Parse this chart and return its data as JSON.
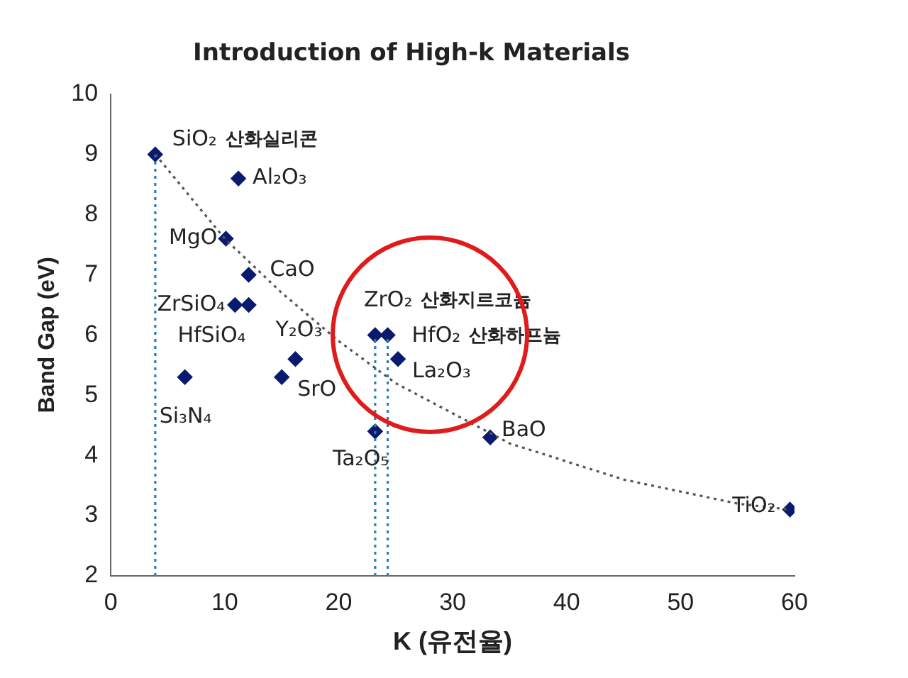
{
  "chart_data": {
    "type": "scatter",
    "title": "Introduction of High-k Materials",
    "xlabel": "K (유전율)",
    "ylabel": "Band Gap (eV)",
    "xlim": [
      0,
      60
    ],
    "xticks": [
      0,
      10,
      20,
      30,
      40,
      50,
      60
    ],
    "ylim": [
      2,
      10
    ],
    "yticks": [
      2,
      3,
      4,
      5,
      6,
      7,
      8,
      9,
      10
    ],
    "grid": false,
    "legend": false,
    "series": [
      {
        "type": "line",
        "color": "#555555",
        "marker": "none",
        "line_style": "dotted",
        "x": [
          3.9,
          10,
          15,
          20,
          25,
          30,
          35,
          40,
          45,
          50,
          55,
          59.6
        ],
        "values": [
          9,
          7.6,
          6.7,
          5.9,
          5.2,
          4.7,
          4.2,
          3.9,
          3.6,
          3.4,
          3.2,
          3.1
        ]
      },
      {
        "type": "line",
        "color": "#2a7fb0",
        "marker": "none",
        "line_style": "dotted",
        "x": [
          3.9,
          3.9
        ],
        "values": [
          2,
          9
        ]
      },
      {
        "type": "line",
        "color": "#2a7fb0",
        "marker": "none",
        "line_style": "dotted",
        "x": [
          23.2,
          23.2
        ],
        "values": [
          2,
          6
        ]
      },
      {
        "type": "line",
        "color": "#2a7fb0",
        "marker": "none",
        "line_style": "dotted",
        "x": [
          24.3,
          24.3
        ],
        "values": [
          2,
          6
        ]
      },
      {
        "type": "scatter",
        "color": "#0a1a6e",
        "marker": "diamond",
        "x": [
          3.9,
          11.2,
          10.1,
          12.1,
          10.9,
          12.1,
          16.2,
          6.5,
          15,
          23.2,
          24.3,
          25.2,
          23.2,
          33.3,
          59.6
        ],
        "values": [
          9,
          8.6,
          7.6,
          7,
          6.5,
          6.5,
          5.6,
          5.3,
          5.3,
          6,
          6,
          5.6,
          4.4,
          4.3,
          3.1
        ]
      }
    ],
    "annotations": [
      {
        "text": "SiO₂",
        "x": 3.9,
        "y": 9
      },
      "산화실리콘",
      {
        "text": "Al₂O₃",
        "x": 11.2,
        "y": 8.6
      },
      {
        "text": "MgO",
        "x": 10.1,
        "y": 7.6
      },
      {
        "text": "CaO",
        "x": 12.1,
        "y": 7
      },
      {
        "text": "ZrSiO₄",
        "x": 10.9,
        "y": 6.5
      },
      {
        "text": "HfSiO₄",
        "x": 12.1,
        "y": 6.5
      },
      {
        "text": "Y₂O₃",
        "x": 16.2,
        "y": 5.6
      },
      {
        "text": "Si₃N₄",
        "x": 6.5,
        "y": 5.3
      },
      {
        "text": "SrO",
        "x": 15,
        "y": 5.3
      },
      {
        "text": "ZrO₂",
        "x": 23.2,
        "y": 6
      },
      "산화지르코늄",
      {
        "text": "HfO₂",
        "x": 24.3,
        "y": 6
      },
      "산화하프늄",
      {
        "text": "La₂O₃",
        "x": 25.2,
        "y": 5.6
      },
      {
        "text": "Ta₂O₅",
        "x": 23.2,
        "y": 4.4
      },
      {
        "text": "BaO",
        "x": 33.3,
        "y": 4.3
      },
      {
        "text": "TiO₂",
        "x": 59.6,
        "y": 3.1
      }
    ]
  }
}
